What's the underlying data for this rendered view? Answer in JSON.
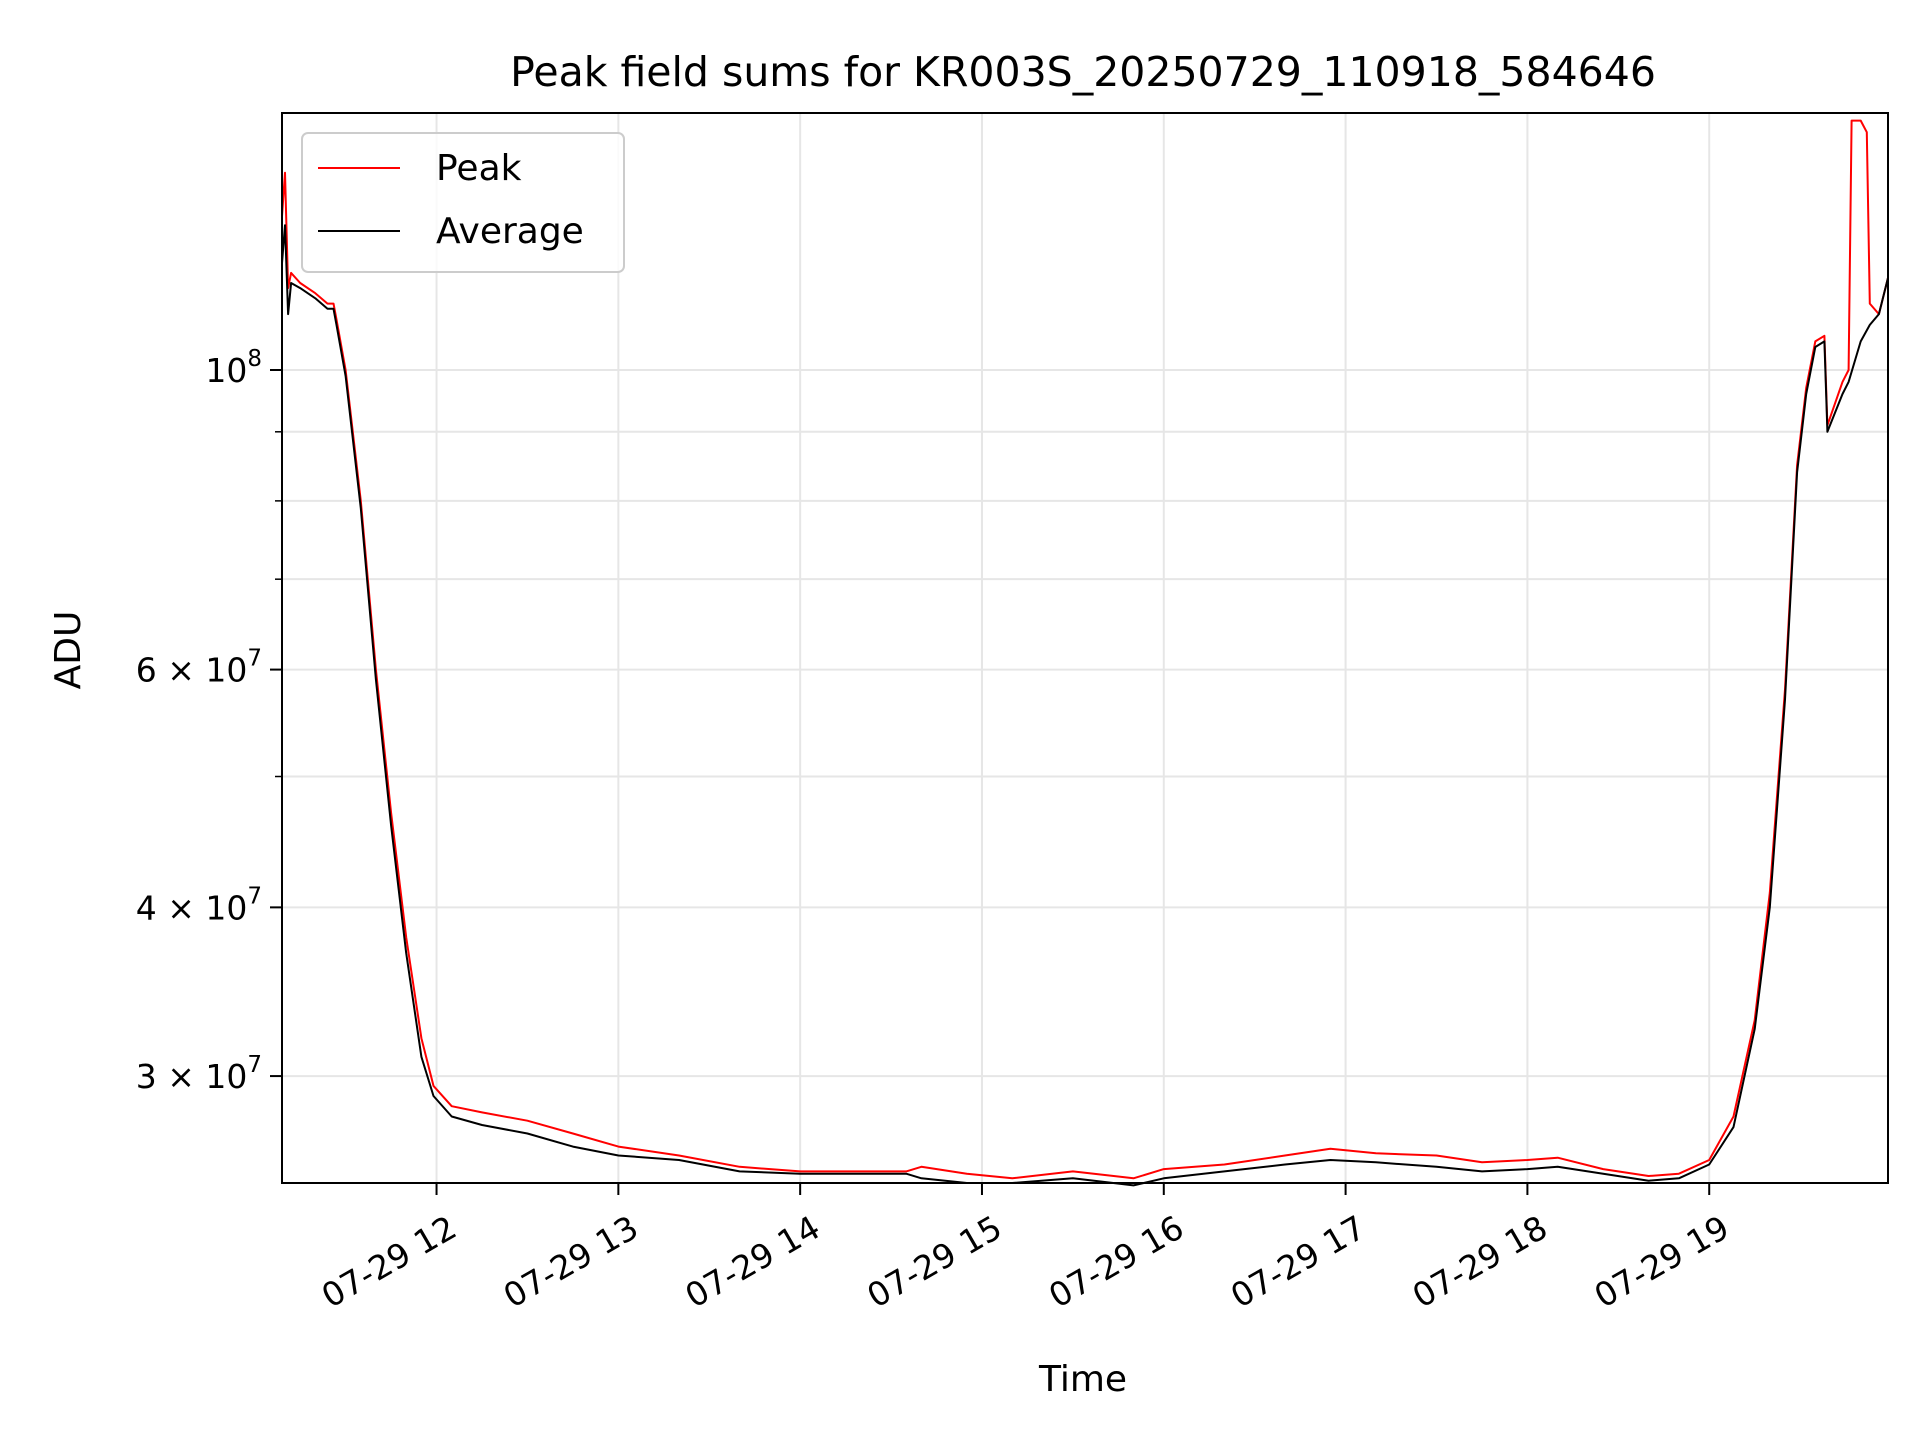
{
  "chart_data": {
    "type": "line",
    "title": "Peak field sums for KR003S_20250729_110918_584646",
    "xlabel": "Time",
    "ylabel": "ADU",
    "y_scale": "log",
    "ylim": [
      25000000,
      155000000
    ],
    "xlim": [
      "07-29 11:09",
      "07-29 19:59"
    ],
    "grid": true,
    "legend_position": "top-left",
    "x_ticks": [
      {
        "value": "07-29 12:00",
        "label": "07-29 12"
      },
      {
        "value": "07-29 13:00",
        "label": "07-29 13"
      },
      {
        "value": "07-29 14:00",
        "label": "07-29 14"
      },
      {
        "value": "07-29 15:00",
        "label": "07-29 15"
      },
      {
        "value": "07-29 16:00",
        "label": "07-29 16"
      },
      {
        "value": "07-29 17:00",
        "label": "07-29 17"
      },
      {
        "value": "07-29 18:00",
        "label": "07-29 18"
      },
      {
        "value": "07-29 19:00",
        "label": "07-29 19"
      }
    ],
    "y_ticks": [
      {
        "value": 100000000,
        "base": "10",
        "exp": "8"
      },
      {
        "value": 60000000,
        "base": "6 × 10",
        "exp": "7"
      },
      {
        "value": 40000000,
        "base": "4 × 10",
        "exp": "7"
      },
      {
        "value": 30000000,
        "base": "3 × 10",
        "exp": "7"
      }
    ],
    "y_minor_ticks": [
      90000000,
      80000000,
      70000000,
      50000000
    ],
    "series": [
      {
        "name": "Peak",
        "color": "#ff0000",
        "points": [
          [
            "07-29 11:09",
            130000000.0
          ],
          [
            "07-29 11:10",
            140000000.0
          ],
          [
            "07-29 11:11",
            115000000.0
          ],
          [
            "07-29 11:12",
            118000000.0
          ],
          [
            "07-29 11:15",
            116000000.0
          ],
          [
            "07-29 11:20",
            114000000.0
          ],
          [
            "07-29 11:24",
            112000000.0
          ],
          [
            "07-29 11:26",
            112000000.0
          ],
          [
            "07-29 11:27",
            109000000.0
          ],
          [
            "07-29 11:30",
            100000000.0
          ],
          [
            "07-29 11:35",
            80000000.0
          ],
          [
            "07-29 11:40",
            60000000.0
          ],
          [
            "07-29 11:45",
            47000000.0
          ],
          [
            "07-29 11:50",
            38000000.0
          ],
          [
            "07-29 11:55",
            32000000.0
          ],
          [
            "07-29 11:59",
            29500000.0
          ],
          [
            "07-29 12:05",
            28500000.0
          ],
          [
            "07-29 12:15",
            28200000.0
          ],
          [
            "07-29 12:30",
            27800000.0
          ],
          [
            "07-29 12:45",
            27200000.0
          ],
          [
            "07-29 13:00",
            26600000.0
          ],
          [
            "07-29 13:20",
            26200000.0
          ],
          [
            "07-29 13:40",
            25700000.0
          ],
          [
            "07-29 14:00",
            25500000.0
          ],
          [
            "07-29 14:20",
            25500000.0
          ],
          [
            "07-29 14:35",
            25500000.0
          ],
          [
            "07-29 14:40",
            25700000.0
          ],
          [
            "07-29 14:55",
            25400000.0
          ],
          [
            "07-29 15:10",
            25200000.0
          ],
          [
            "07-29 15:30",
            25500000.0
          ],
          [
            "07-29 15:50",
            25200000.0
          ],
          [
            "07-29 16:00",
            25600000.0
          ],
          [
            "07-29 16:20",
            25800000.0
          ],
          [
            "07-29 16:40",
            26200000.0
          ],
          [
            "07-29 16:55",
            26500000.0
          ],
          [
            "07-29 17:10",
            26300000.0
          ],
          [
            "07-29 17:30",
            26200000.0
          ],
          [
            "07-29 17:45",
            25900000.0
          ],
          [
            "07-29 18:00",
            26000000.0
          ],
          [
            "07-29 18:10",
            26100000.0
          ],
          [
            "07-29 18:25",
            25600000.0
          ],
          [
            "07-29 18:40",
            25300000.0
          ],
          [
            "07-29 18:50",
            25400000.0
          ],
          [
            "07-29 19:00",
            26000000.0
          ],
          [
            "07-29 19:08",
            28000000.0
          ],
          [
            "07-29 19:15",
            33000000.0
          ],
          [
            "07-29 19:20",
            41000000.0
          ],
          [
            "07-29 19:25",
            58000000.0
          ],
          [
            "07-29 19:29",
            85000000.0
          ],
          [
            "07-29 19:32",
            97000000.0
          ],
          [
            "07-29 19:35",
            105000000.0
          ],
          [
            "07-29 19:38",
            106000000.0
          ],
          [
            "07-29 19:39",
            91000000.0
          ],
          [
            "07-29 19:44",
            98000000.0
          ],
          [
            "07-29 19:46",
            100000000.0
          ],
          [
            "07-29 19:47",
            153000000.0
          ],
          [
            "07-29 19:50",
            153000000.0
          ],
          [
            "07-29 19:52",
            150000000.0
          ],
          [
            "07-29 19:53",
            112000000.0
          ],
          [
            "07-29 19:56",
            110000000.0
          ],
          [
            "07-29 19:59",
            117000000.0
          ]
        ]
      },
      {
        "name": "Average",
        "color": "#000000",
        "points": [
          [
            "07-29 11:09",
            120000000.0
          ],
          [
            "07-29 11:10",
            128000000.0
          ],
          [
            "07-29 11:11",
            110000000.0
          ],
          [
            "07-29 11:12",
            116000000.0
          ],
          [
            "07-29 11:15",
            115000000.0
          ],
          [
            "07-29 11:20",
            113000000.0
          ],
          [
            "07-29 11:24",
            111000000.0
          ],
          [
            "07-29 11:26",
            111000000.0
          ],
          [
            "07-29 11:27",
            108000000.0
          ],
          [
            "07-29 11:30",
            99000000.0
          ],
          [
            "07-29 11:35",
            79000000.0
          ],
          [
            "07-29 11:40",
            59000000.0
          ],
          [
            "07-29 11:45",
            46000000.0
          ],
          [
            "07-29 11:50",
            37000000.0
          ],
          [
            "07-29 11:55",
            31000000.0
          ],
          [
            "07-29 11:59",
            29000000.0
          ],
          [
            "07-29 12:05",
            28000000.0
          ],
          [
            "07-29 12:15",
            27600000.0
          ],
          [
            "07-29 12:30",
            27200000.0
          ],
          [
            "07-29 12:45",
            26600000.0
          ],
          [
            "07-29 13:00",
            26200000.0
          ],
          [
            "07-29 13:20",
            26000000.0
          ],
          [
            "07-29 13:40",
            25500000.0
          ],
          [
            "07-29 14:00",
            25400000.0
          ],
          [
            "07-29 14:20",
            25400000.0
          ],
          [
            "07-29 14:35",
            25400000.0
          ],
          [
            "07-29 14:40",
            25200000.0
          ],
          [
            "07-29 14:55",
            25000000.0
          ],
          [
            "07-29 15:10",
            25000000.0
          ],
          [
            "07-29 15:30",
            25200000.0
          ],
          [
            "07-29 15:50",
            24900000.0
          ],
          [
            "07-29 16:00",
            25200000.0
          ],
          [
            "07-29 16:20",
            25500000.0
          ],
          [
            "07-29 16:40",
            25800000.0
          ],
          [
            "07-29 16:55",
            26000000.0
          ],
          [
            "07-29 17:10",
            25900000.0
          ],
          [
            "07-29 17:30",
            25700000.0
          ],
          [
            "07-29 17:45",
            25500000.0
          ],
          [
            "07-29 18:00",
            25600000.0
          ],
          [
            "07-29 18:10",
            25700000.0
          ],
          [
            "07-29 18:25",
            25400000.0
          ],
          [
            "07-29 18:40",
            25100000.0
          ],
          [
            "07-29 18:50",
            25200000.0
          ],
          [
            "07-29 19:00",
            25800000.0
          ],
          [
            "07-29 19:08",
            27500000.0
          ],
          [
            "07-29 19:15",
            32500000.0
          ],
          [
            "07-29 19:20",
            40000000.0
          ],
          [
            "07-29 19:25",
            57000000.0
          ],
          [
            "07-29 19:29",
            84000000.0
          ],
          [
            "07-29 19:32",
            96000000.0
          ],
          [
            "07-29 19:35",
            104000000.0
          ],
          [
            "07-29 19:38",
            105000000.0
          ],
          [
            "07-29 19:39",
            90000000.0
          ],
          [
            "07-29 19:44",
            96000000.0
          ],
          [
            "07-29 19:46",
            98000000.0
          ],
          [
            "07-29 19:50",
            105000000.0
          ],
          [
            "07-29 19:53",
            108000000.0
          ],
          [
            "07-29 19:56",
            110000000.0
          ],
          [
            "07-29 19:59",
            117000000.0
          ]
        ]
      }
    ]
  }
}
